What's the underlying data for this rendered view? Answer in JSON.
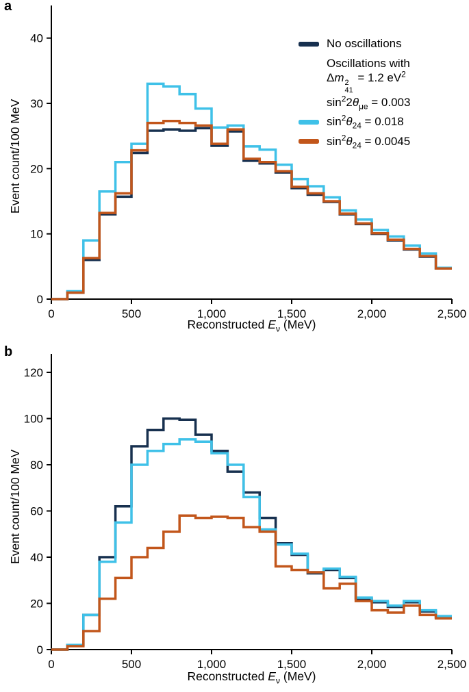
{
  "figure": {
    "panel_a_letter": "a",
    "panel_b_letter": "b"
  },
  "colors": {
    "no_osc": "#17304f",
    "theta24_018": "#3fc1e8",
    "theta24_0045": "#c2561b"
  },
  "axes": {
    "ylabel": "Event count/100 MeV",
    "xlabel_html": "Reconstructed <i>E</i><sub>ν</sub> (MeV)"
  },
  "legend": {
    "no_osc_label": "No oscillations",
    "osc_with": "Oscillations with",
    "dm2_html": "Δ<i>m</i><span class=\"supsub\"><span>2</span><span>41</span></span> = 1.2 eV<sup>2</sup>",
    "sin2_2theta_html": "sin<sup>2</sup>2<i>θ</i><sub>μe</sub> = 0.003",
    "s24_018_html": "sin<sup>2</sup><i>θ</i><sub>24</sub> = 0.018",
    "s24_0045_html": "sin<sup>2</sup><i>θ</i><sub>24</sub> = 0.0045"
  },
  "chart_data": [
    {
      "type": "histogram-step",
      "panel": "a",
      "title": "",
      "xlabel": "Reconstructed Eν (MeV)",
      "ylabel": "Event count/100 MeV",
      "xlim": [
        0,
        2500
      ],
      "ylim": [
        0,
        45
      ],
      "grid": false,
      "legend_position": "upper right",
      "bin_edges": [
        0,
        100,
        200,
        300,
        400,
        500,
        600,
        700,
        800,
        900,
        1000,
        1100,
        1200,
        1300,
        1400,
        1500,
        1600,
        1700,
        1800,
        1900,
        2000,
        2100,
        2200,
        2300,
        2400,
        2500
      ],
      "xticks": [
        {
          "v": 0,
          "label": "0"
        },
        {
          "v": 500,
          "label": "500"
        },
        {
          "v": 1000,
          "label": "1,000"
        },
        {
          "v": 1500,
          "label": "1,500"
        },
        {
          "v": 2000,
          "label": "2,000"
        },
        {
          "v": 2500,
          "label": "2,500"
        }
      ],
      "yticks": [
        {
          "v": 0,
          "label": "0"
        },
        {
          "v": 10,
          "label": "10"
        },
        {
          "v": 20,
          "label": "20"
        },
        {
          "v": 30,
          "label": "30"
        },
        {
          "v": 40,
          "label": "40"
        }
      ],
      "series": [
        {
          "name": "No oscillations",
          "color_key": "no_osc",
          "values": [
            0,
            1.0,
            6.0,
            13.0,
            15.7,
            22.4,
            25.8,
            26.0,
            25.8,
            26.2,
            23.5,
            25.7,
            21.2,
            20.8,
            19.4,
            17.0,
            16.0,
            14.9,
            13.0,
            11.5,
            10.0,
            9.0,
            7.6,
            6.5,
            4.7
          ]
        },
        {
          "name": "sin²θ₂₄ = 0.018",
          "color_key": "theta24_018",
          "values": [
            0,
            1.2,
            9.0,
            16.5,
            21.0,
            23.8,
            33.0,
            32.6,
            31.4,
            29.2,
            26.3,
            26.6,
            23.4,
            22.9,
            20.6,
            18.4,
            17.3,
            15.6,
            13.6,
            12.2,
            10.6,
            9.6,
            8.2,
            7.0,
            4.8
          ]
        },
        {
          "name": "sin²θ₂₄ = 0.0045",
          "color_key": "theta24_0045",
          "values": [
            0,
            1.0,
            6.3,
            13.2,
            16.2,
            22.8,
            27.0,
            27.3,
            27.0,
            26.6,
            23.8,
            26.0,
            21.5,
            21.0,
            19.6,
            17.2,
            16.2,
            15.0,
            13.1,
            11.6,
            10.1,
            9.1,
            7.7,
            6.6,
            4.7
          ]
        }
      ]
    },
    {
      "type": "histogram-step",
      "panel": "b",
      "title": "",
      "xlabel": "Reconstructed Eν (MeV)",
      "ylabel": "Event count/100 MeV",
      "xlim": [
        0,
        2500
      ],
      "ylim": [
        0,
        128
      ],
      "grid": false,
      "legend_position": "none",
      "bin_edges": [
        0,
        100,
        200,
        300,
        400,
        500,
        600,
        700,
        800,
        900,
        1000,
        1100,
        1200,
        1300,
        1400,
        1500,
        1600,
        1700,
        1800,
        1900,
        2000,
        2100,
        2200,
        2300,
        2400,
        2500
      ],
      "xticks": [
        {
          "v": 0,
          "label": "0"
        },
        {
          "v": 500,
          "label": "500"
        },
        {
          "v": 1000,
          "label": "1,000"
        },
        {
          "v": 1500,
          "label": "1,500"
        },
        {
          "v": 2000,
          "label": "2,000"
        },
        {
          "v": 2500,
          "label": "2,500"
        }
      ],
      "yticks": [
        {
          "v": 0,
          "label": "0"
        },
        {
          "v": 20,
          "label": "20"
        },
        {
          "v": 40,
          "label": "40"
        },
        {
          "v": 60,
          "label": "60"
        },
        {
          "v": 80,
          "label": "80"
        },
        {
          "v": 100,
          "label": "100"
        },
        {
          "v": 120,
          "label": "120"
        }
      ],
      "series": [
        {
          "name": "No oscillations",
          "color_key": "no_osc",
          "values": [
            0,
            2,
            15,
            40,
            62,
            88,
            95,
            100,
            99.5,
            93,
            86,
            77,
            68,
            57,
            46,
            41,
            33,
            34.5,
            31,
            22,
            20.5,
            18.5,
            20.5,
            16.5,
            14
          ]
        },
        {
          "name": "sin²θ₂₄ = 0.018",
          "color_key": "theta24_018",
          "values": [
            0,
            2,
            15,
            38,
            55,
            80,
            86,
            89,
            91,
            90,
            85,
            80,
            66,
            52,
            45.5,
            41.5,
            33.5,
            35,
            31.5,
            22.5,
            21,
            19,
            21,
            17,
            14.5
          ]
        },
        {
          "name": "sin²θ₂₄ = 0.0045",
          "color_key": "theta24_0045",
          "values": [
            0,
            1.5,
            8,
            22,
            31,
            40,
            44,
            51,
            58,
            57,
            57.5,
            57,
            53,
            51,
            36,
            34.5,
            33.5,
            26.5,
            28.5,
            21,
            17,
            16,
            19,
            15,
            13.5
          ]
        }
      ]
    }
  ]
}
